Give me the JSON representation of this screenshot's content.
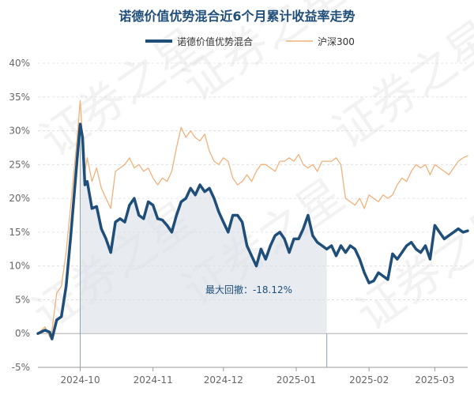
{
  "chart_data": {
    "type": "line",
    "title": "诺德价值优势混合近6个月累计收益率走势",
    "xlabel": "",
    "ylabel": "",
    "x_tick_labels": [
      "2024-10",
      "2024-11",
      "2024-12",
      "2025-01",
      "2025-02",
      "2025-03"
    ],
    "y_ticks": [
      -5,
      0,
      5,
      10,
      15,
      20,
      25,
      30,
      35,
      40
    ],
    "y_tick_labels": [
      "-5%",
      "0%",
      "5%",
      "10%",
      "15%",
      "20%",
      "25%",
      "30%",
      "35%",
      "40%"
    ],
    "ylim": [
      -5,
      40
    ],
    "x_range_days": [
      0,
      183
    ],
    "x_start_date": "2024-09-13",
    "grid": true,
    "legend": "top-center",
    "series": [
      {
        "name": "诺德价值优势混合",
        "color": "#1f4e79",
        "x": [
          0,
          3,
          5,
          6,
          8,
          10,
          12,
          14,
          17,
          18,
          19,
          20,
          21,
          23,
          25,
          27,
          29,
          31,
          33,
          35,
          37,
          39,
          41,
          43,
          45,
          47,
          49,
          51,
          53,
          55,
          57,
          59,
          61,
          63,
          65,
          67,
          69,
          71,
          73,
          75,
          77,
          79,
          81,
          83,
          85,
          87,
          89,
          91,
          93,
          95,
          97,
          99,
          101,
          103,
          105,
          107,
          109,
          111,
          113,
          115,
          117,
          119,
          121,
          123,
          125,
          127,
          129,
          131,
          133,
          135,
          137,
          139,
          141,
          143,
          145,
          147,
          149,
          151,
          153,
          155,
          157,
          159,
          161,
          163,
          165,
          167,
          169,
          171,
          173,
          175,
          177,
          179,
          181,
          183
        ],
        "values": [
          0.0,
          0.5,
          0.2,
          -0.8,
          2.0,
          2.5,
          7.0,
          14.5,
          27.0,
          31.0,
          29.0,
          22.0,
          22.5,
          18.5,
          18.8,
          15.5,
          14.0,
          12.0,
          16.5,
          17.0,
          16.5,
          19.0,
          20.0,
          17.5,
          17.0,
          19.5,
          19.0,
          17.0,
          16.8,
          16.0,
          15.0,
          17.5,
          19.5,
          20.0,
          21.5,
          20.5,
          22.0,
          21.0,
          21.5,
          20.0,
          18.0,
          16.5,
          15.0,
          17.5,
          17.5,
          16.5,
          13.0,
          11.5,
          10.0,
          12.5,
          11.0,
          13.0,
          14.5,
          15.0,
          14.0,
          12.0,
          14.0,
          14.0,
          15.5,
          17.5,
          14.5,
          13.5,
          13.0,
          12.5,
          13.0,
          11.5,
          13.0,
          12.0,
          13.0,
          12.5,
          11.0,
          9.0,
          7.5,
          7.8,
          9.0,
          8.5,
          8.0,
          11.8,
          11.0,
          12.0,
          13.0,
          13.5,
          12.5,
          12.0,
          13.0,
          11.0,
          16.0,
          15.0,
          14.0,
          14.5,
          15.0,
          15.5,
          15.0,
          15.2
        ],
        "drawdown_start_day": 18,
        "drawdown_end_day": 124
      },
      {
        "name": "沪深300",
        "color": "#f0b27a",
        "x": [
          0,
          3,
          5,
          6,
          8,
          10,
          12,
          14,
          17,
          18,
          19,
          20,
          21,
          23,
          25,
          27,
          29,
          31,
          33,
          35,
          37,
          39,
          41,
          43,
          45,
          47,
          49,
          51,
          53,
          55,
          57,
          59,
          61,
          63,
          65,
          67,
          69,
          71,
          73,
          75,
          77,
          79,
          81,
          83,
          85,
          87,
          89,
          91,
          93,
          95,
          97,
          99,
          101,
          103,
          105,
          107,
          109,
          111,
          113,
          115,
          117,
          119,
          121,
          123,
          125,
          127,
          129,
          131,
          133,
          135,
          137,
          139,
          141,
          143,
          145,
          147,
          149,
          151,
          153,
          155,
          157,
          159,
          161,
          163,
          165,
          167,
          169,
          171,
          173,
          175,
          177,
          179,
          181,
          183
        ],
        "values": [
          0.0,
          1.0,
          -0.5,
          0.5,
          6.0,
          7.0,
          12.0,
          19.0,
          30.0,
          34.5,
          29.0,
          24.0,
          26.0,
          22.5,
          24.5,
          21.5,
          20.0,
          18.5,
          24.0,
          24.5,
          25.0,
          26.0,
          24.5,
          25.0,
          24.0,
          24.5,
          23.0,
          22.0,
          23.0,
          22.5,
          24.0,
          27.5,
          30.5,
          29.0,
          30.0,
          29.0,
          28.5,
          29.5,
          27.0,
          25.5,
          25.0,
          26.0,
          25.5,
          23.0,
          22.0,
          22.5,
          23.5,
          22.5,
          24.0,
          25.0,
          25.0,
          24.5,
          24.0,
          25.5,
          25.5,
          26.0,
          25.5,
          26.5,
          25.0,
          24.5,
          25.0,
          24.0,
          25.5,
          25.5,
          25.5,
          26.0,
          25.0,
          20.0,
          19.5,
          19.0,
          20.0,
          18.5,
          20.5,
          20.0,
          19.5,
          20.5,
          20.0,
          20.5,
          22.0,
          23.0,
          22.5,
          24.0,
          25.0,
          24.5,
          25.0,
          23.5,
          25.0,
          24.5,
          24.0,
          23.5,
          24.5,
          25.5,
          26.0,
          26.3
        ]
      }
    ],
    "annotation": {
      "label": "最大回撤：-18.12%",
      "value": -18.12
    },
    "watermark": "证券之星"
  }
}
